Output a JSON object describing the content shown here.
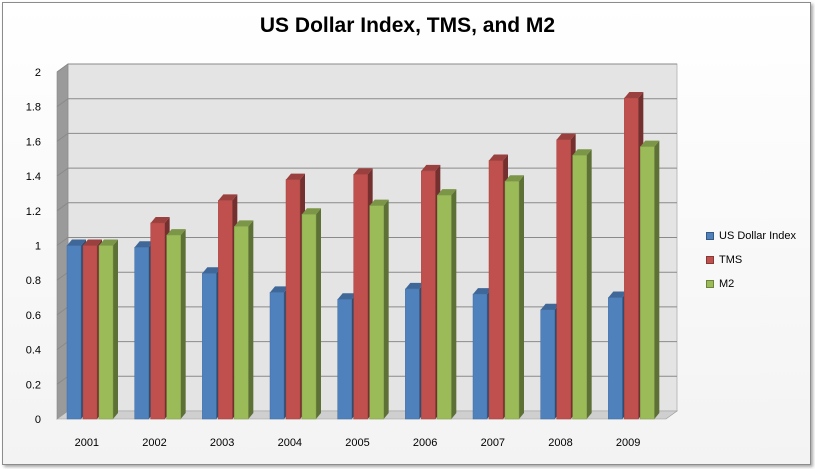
{
  "chart_data": {
    "type": "bar",
    "title": "US Dollar Index, TMS, and M2",
    "categories": [
      "2001",
      "2002",
      "2003",
      "2004",
      "2005",
      "2006",
      "2007",
      "2008",
      "2009"
    ],
    "series": [
      {
        "name": "US Dollar Index",
        "color": "#4f81bd",
        "values": [
          1.0,
          0.99,
          0.84,
          0.73,
          0.69,
          0.75,
          0.72,
          0.63,
          0.7
        ]
      },
      {
        "name": "TMS",
        "color": "#c0504d",
        "values": [
          1.0,
          1.13,
          1.26,
          1.38,
          1.41,
          1.43,
          1.49,
          1.61,
          1.85
        ]
      },
      {
        "name": "M2",
        "color": "#9bbb59",
        "values": [
          1.0,
          1.06,
          1.11,
          1.18,
          1.23,
          1.29,
          1.37,
          1.52,
          1.57
        ]
      }
    ],
    "ylim": [
      0,
      2
    ],
    "yticks": [
      "0",
      "0.2",
      "0.4",
      "0.6",
      "0.8",
      "1",
      "1.2",
      "1.4",
      "1.6",
      "1.8",
      "2"
    ],
    "grid": true,
    "legend": "right"
  }
}
